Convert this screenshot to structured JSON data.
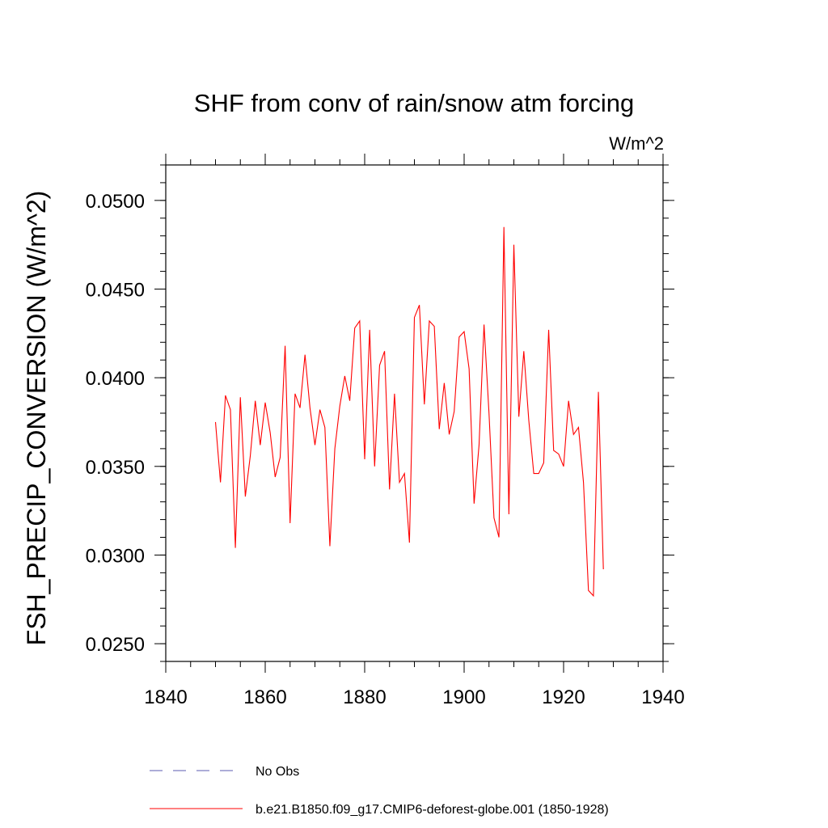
{
  "chart_data": {
    "type": "line",
    "title": "SHF from conv of rain/snow atm forcing",
    "units_label": "W/m^2",
    "xlabel": "",
    "ylabel": "FSH_PRECIP_CONVERSION  (W/m^2)",
    "xlim": [
      1840,
      1940
    ],
    "ylim": [
      0.024,
      0.052
    ],
    "xticks": [
      1840,
      1860,
      1880,
      1900,
      1920,
      1940
    ],
    "xtick_labels": [
      "1840",
      "1860",
      "1880",
      "1900",
      "1920",
      "1940"
    ],
    "yticks": [
      0.025,
      0.03,
      0.035,
      0.04,
      0.045,
      0.05
    ],
    "ytick_labels": [
      "0.0250",
      "0.0300",
      "0.0350",
      "0.0400",
      "0.0450",
      "0.0500"
    ],
    "x_minor_step": 5,
    "y_minor_step": 0.001,
    "grid": false,
    "legend_position": "bottom",
    "series": [
      {
        "name": "No Obs",
        "style": "dashed",
        "color": "#5b5bb0",
        "x": [],
        "values": []
      },
      {
        "name": "b.e21.B1850.f09_g17.CMIP6-deforest-globe.001 (1850-1928)",
        "style": "solid",
        "color": "#ff0000",
        "x": [
          1850,
          1851,
          1852,
          1853,
          1854,
          1855,
          1856,
          1857,
          1858,
          1859,
          1860,
          1861,
          1862,
          1863,
          1864,
          1865,
          1866,
          1867,
          1868,
          1869,
          1870,
          1871,
          1872,
          1873,
          1874,
          1875,
          1876,
          1877,
          1878,
          1879,
          1880,
          1881,
          1882,
          1883,
          1884,
          1885,
          1886,
          1887,
          1888,
          1889,
          1890,
          1891,
          1892,
          1893,
          1894,
          1895,
          1896,
          1897,
          1898,
          1899,
          1900,
          1901,
          1902,
          1903,
          1904,
          1905,
          1906,
          1907,
          1908,
          1909,
          1910,
          1911,
          1912,
          1913,
          1914,
          1915,
          1916,
          1917,
          1918,
          1919,
          1920,
          1921,
          1922,
          1923,
          1924,
          1925,
          1926,
          1927,
          1928
        ],
        "values": [
          0.0375,
          0.0341,
          0.039,
          0.0382,
          0.0304,
          0.0389,
          0.0333,
          0.0356,
          0.0387,
          0.0362,
          0.0386,
          0.0369,
          0.0344,
          0.0355,
          0.0418,
          0.0318,
          0.0391,
          0.0383,
          0.0413,
          0.0383,
          0.0362,
          0.0382,
          0.0372,
          0.0305,
          0.036,
          0.0384,
          0.0401,
          0.0387,
          0.0428,
          0.0432,
          0.0354,
          0.0427,
          0.035,
          0.0407,
          0.0415,
          0.0337,
          0.0391,
          0.0341,
          0.0346,
          0.0307,
          0.0434,
          0.0441,
          0.0385,
          0.0432,
          0.0429,
          0.0371,
          0.0397,
          0.0368,
          0.0381,
          0.0423,
          0.0426,
          0.0405,
          0.0329,
          0.0362,
          0.043,
          0.038,
          0.0321,
          0.031,
          0.0485,
          0.0323,
          0.0475,
          0.0378,
          0.0415,
          0.0376,
          0.0346,
          0.0346,
          0.0352,
          0.0427,
          0.0359,
          0.0357,
          0.035,
          0.0387,
          0.0368,
          0.0372,
          0.0341,
          0.028,
          0.0277,
          0.0392,
          0.0292
        ]
      }
    ]
  }
}
